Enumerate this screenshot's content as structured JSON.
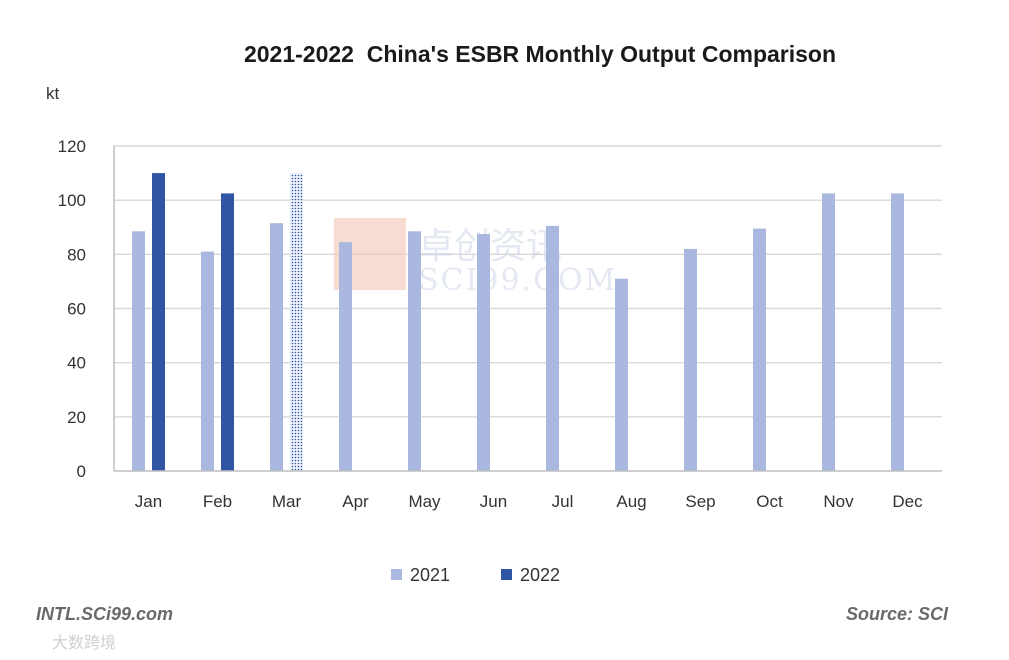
{
  "chart_data": {
    "type": "bar",
    "title": "2021-2022  China's ESBR Monthly Output Comparison",
    "ylabel": "kt",
    "xlabel": "",
    "ylim": [
      0,
      120
    ],
    "yticks": [
      0,
      20,
      40,
      60,
      80,
      100,
      120
    ],
    "categories": [
      "Jan",
      "Feb",
      "Mar",
      "Apr",
      "May",
      "Jun",
      "Jul",
      "Aug",
      "Sep",
      "Oct",
      "Nov",
      "Dec"
    ],
    "series": [
      {
        "name": "2021",
        "color": "#aab8e0",
        "values": [
          88.5,
          81,
          91.5,
          84.5,
          88.5,
          87.5,
          90.5,
          71,
          82,
          89.5,
          102.5,
          102.5
        ]
      },
      {
        "name": "2022",
        "color": "#2f55a4",
        "values": [
          110,
          102.5,
          110,
          null,
          null,
          null,
          null,
          null,
          null,
          null,
          null,
          null
        ],
        "estimated": [
          false,
          false,
          true,
          false,
          false,
          false,
          false,
          false,
          false,
          false,
          false,
          false
        ]
      }
    ],
    "grid": true,
    "legend_position": "bottom"
  },
  "watermark": {
    "text_cn": "卓创资讯",
    "text_en": "SCI99.COM"
  },
  "footer": {
    "left": "INTL.SCi99.com",
    "right": "Source: SCI"
  },
  "credit": {
    "text": "大数跨境"
  },
  "colors": {
    "grid": "#d9d9d9",
    "axis": "#bfbfbf",
    "estimate_pattern": "#2f55a4"
  }
}
